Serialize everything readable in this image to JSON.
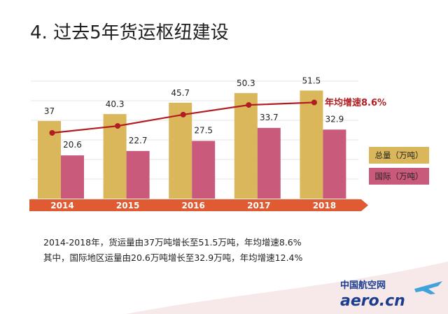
{
  "slide": {
    "title": "4. 过去5年货运枢纽建设"
  },
  "chart_data": {
    "type": "bar",
    "categories": [
      "2014",
      "2015",
      "2016",
      "2017",
      "2018"
    ],
    "series": [
      {
        "name": "总量（万吨）",
        "values": [
          37,
          40.3,
          45.7,
          50.3,
          51.5
        ],
        "color": "#d9b75a"
      },
      {
        "name": "国际（万吨）",
        "values": [
          20.6,
          22.7,
          27.5,
          33.7,
          32.9
        ],
        "color": "#c95a7c"
      }
    ],
    "trend_line": {
      "follows": "总量（万吨）",
      "color": "#b11d21"
    },
    "annotation": "年均增速8.6%",
    "ylim": [
      0,
      56
    ],
    "legend_position": "right",
    "grid": true,
    "axis_band_color": "#e05a32"
  },
  "summary": {
    "line1": "2014-2018年，货运量由37万吨增长至51.5万吨，年均增速8.6%",
    "line2": "其中，国际地区运量由20.6万吨增长至32.9万吨，年均增速12.4%"
  },
  "logo": {
    "text_cn": "中国航空网",
    "text_en": "aero.cn"
  }
}
